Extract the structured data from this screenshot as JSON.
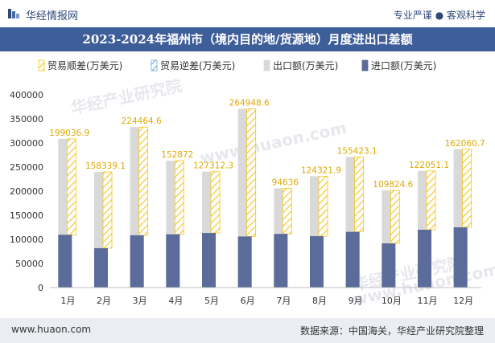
{
  "header": {
    "brand": "华经情报网",
    "tags": "专业严谨 ● 客观科学",
    "title": "2023-2024年福州市（境内目的地/货源地）月度进出口差额"
  },
  "footer": {
    "website": "www.huaon.com",
    "source": "数据来源：中国海关，华经产业研究院整理"
  },
  "watermarks": [
    "华经产业研究院",
    "www.huaon.com",
    "华经产业研究院",
    "www.huaon.com"
  ],
  "colors": {
    "export": "#d9d9d9",
    "import": "#5b6b9a",
    "surplus": "#f5c518",
    "deficit": "#6fa8dc",
    "label": "#e0a800"
  },
  "chart_data": {
    "type": "bar",
    "categories": [
      "1月",
      "2月",
      "3月",
      "4月",
      "5月",
      "6月",
      "7月",
      "8月",
      "9月",
      "10月",
      "11月",
      "12月"
    ],
    "series": [
      {
        "name": "贸易顺差(万美元)",
        "values": [
          199036.9,
          158339.1,
          224464.6,
          152872,
          127312.3,
          264948.6,
          94636,
          124321.9,
          155423.1,
          109824.6,
          122051.1,
          162060.7
        ]
      },
      {
        "name": "贸易逆差(万美元)",
        "values": [
          0,
          0,
          0,
          0,
          0,
          0,
          0,
          0,
          0,
          0,
          0,
          0
        ]
      },
      {
        "name": "出口额(万美元)",
        "values": [
          308500,
          240000,
          333000,
          263000,
          240500,
          371000,
          206000,
          231000,
          271000,
          201500,
          242000,
          287000
        ]
      },
      {
        "name": "进口额(万美元)",
        "values": [
          109500,
          81700,
          108500,
          110500,
          113200,
          106000,
          111400,
          106700,
          115600,
          91700,
          120000,
          125000
        ]
      }
    ],
    "data_labels": [
      "199036.9",
      "158339.1",
      "224464.6",
      "152872",
      "127312.3",
      "264948.6",
      "94636",
      "124321.9",
      "155423.1",
      "109824.6",
      "122051.1",
      "162060.7"
    ],
    "y_ticks": [
      "0",
      "50000",
      "100000",
      "150000",
      "200000",
      "250000",
      "300000",
      "350000",
      "400000"
    ],
    "ylim": [
      0,
      400000
    ],
    "legend_position": "top",
    "grid": false
  }
}
